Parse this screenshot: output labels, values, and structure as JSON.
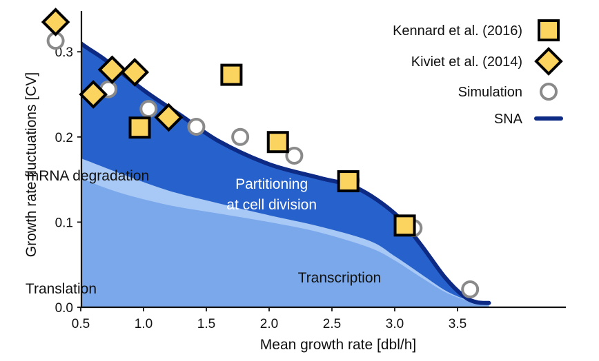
{
  "chart_data": {
    "type": "area",
    "xlabel": "Mean growth rate [dbl/h]",
    "ylabel": "Growth rate fluctuations [CV]",
    "xlim": [
      0,
      3.8
    ],
    "ylim": [
      0,
      0.35
    ],
    "x_ticks": [
      {
        "value": 0.5,
        "label": "0.5"
      },
      {
        "value": 1.0,
        "label": "1.0"
      },
      {
        "value": 1.5,
        "label": "1.5"
      },
      {
        "value": 2.0,
        "label": "2.0"
      },
      {
        "value": 2.5,
        "label": "2.5"
      },
      {
        "value": 3.0,
        "label": "3.0"
      },
      {
        "value": 3.5,
        "label": "3.5"
      }
    ],
    "y_ticks": [
      {
        "value": 0.0,
        "label": "0.0"
      },
      {
        "value": 0.1,
        "label": "0.1"
      },
      {
        "value": 0.2,
        "label": "0.2"
      },
      {
        "value": 0.3,
        "label": "0.3"
      }
    ],
    "areas": [
      {
        "name": "Partitioning at cell division",
        "color": "#2762cc",
        "x": [
          0.02,
          0.1,
          0.2,
          0.3,
          0.5,
          0.7,
          1.0,
          1.3,
          1.6,
          2.0,
          2.4,
          2.7,
          3.0,
          3.2,
          3.4,
          3.55,
          3.65,
          3.75
        ],
        "y": [
          0.35,
          0.35,
          0.345,
          0.335,
          0.31,
          0.29,
          0.255,
          0.225,
          0.195,
          0.168,
          0.152,
          0.14,
          0.11,
          0.075,
          0.035,
          0.013,
          0.006,
          0.005
        ]
      },
      {
        "name": "mRNA degradation",
        "color": "#a8c8f5",
        "x": [
          0.02,
          0.05,
          0.1,
          0.15,
          0.2,
          0.3,
          0.5,
          0.8,
          1.2,
          1.6,
          2.0,
          2.4,
          2.8,
          3.0,
          3.2,
          3.4,
          3.55,
          3.65,
          3.75
        ],
        "y": [
          0.35,
          0.3,
          0.225,
          0.2,
          0.192,
          0.185,
          0.175,
          0.158,
          0.137,
          0.122,
          0.108,
          0.095,
          0.078,
          0.06,
          0.04,
          0.02,
          0.01,
          0.006,
          0.005
        ]
      },
      {
        "name": "Transcription",
        "color": "#7aa8ea",
        "x": [
          0.02,
          0.05,
          0.1,
          0.15,
          0.2,
          0.3,
          0.5,
          0.8,
          1.2,
          1.6,
          2.0,
          2.4,
          2.8,
          3.0,
          3.2,
          3.4,
          3.55,
          3.65,
          3.75
        ],
        "y": [
          0.33,
          0.27,
          0.205,
          0.19,
          0.18,
          0.168,
          0.152,
          0.135,
          0.12,
          0.11,
          0.1,
          0.088,
          0.07,
          0.055,
          0.036,
          0.018,
          0.009,
          0.005,
          0.004
        ]
      },
      {
        "name": "Translation",
        "color": "#b3b3b3",
        "x": [
          0.0,
          0.03,
          0.06,
          0.09,
          0.12,
          0.15,
          0.2,
          0.3
        ],
        "y": [
          0.083,
          0.05,
          0.03,
          0.015,
          0.007,
          0.003,
          0.001,
          0.0
        ]
      }
    ],
    "area_labels": [
      {
        "text": "mRNA degradation",
        "x": 0.07,
        "y": 0.149,
        "style": "dark"
      },
      {
        "text": "Partitioning",
        "x": 2.02,
        "y": 0.139,
        "style": "light",
        "anchor": "middle"
      },
      {
        "text": "at cell division",
        "x": 2.02,
        "y": 0.115,
        "style": "light",
        "anchor": "middle"
      },
      {
        "text": "Transcription",
        "x": 2.56,
        "y": 0.029,
        "style": "dark",
        "anchor": "middle"
      },
      {
        "text": "Translation",
        "x": 0.06,
        "y": 0.016,
        "style": "dark"
      }
    ],
    "sna": {
      "name": "SNA",
      "color": "#0d2a85",
      "x": [
        0.02,
        0.1,
        0.2,
        0.3,
        0.5,
        0.7,
        1.0,
        1.3,
        1.6,
        2.0,
        2.4,
        2.7,
        3.0,
        3.2,
        3.4,
        3.55,
        3.65,
        3.75
      ],
      "y": [
        0.35,
        0.35,
        0.345,
        0.335,
        0.31,
        0.29,
        0.255,
        0.225,
        0.195,
        0.168,
        0.152,
        0.14,
        0.11,
        0.075,
        0.035,
        0.013,
        0.006,
        0.005
      ]
    },
    "series": [
      {
        "name": "Kennard et al. (2016)",
        "marker": "square",
        "color": "#fbd460",
        "x": [
          0.97,
          1.7,
          2.07,
          2.63,
          3.08
        ],
        "y": [
          0.211,
          0.273,
          0.194,
          0.148,
          0.096
        ]
      },
      {
        "name": "Kiviet et al. (2014)",
        "marker": "diamond",
        "color": "#fbd460",
        "x": [
          0.3,
          0.6,
          0.75,
          0.93,
          1.2
        ],
        "y": [
          0.335,
          0.25,
          0.279,
          0.276,
          0.223
        ]
      },
      {
        "name": "Simulation",
        "marker": "circle",
        "color": "#ffffff",
        "x": [
          0.3,
          0.72,
          1.04,
          1.42,
          1.77,
          2.2,
          2.65,
          3.15,
          3.6
        ],
        "y": [
          0.313,
          0.256,
          0.233,
          0.212,
          0.2,
          0.178,
          0.149,
          0.093,
          0.021
        ]
      }
    ],
    "legend": {
      "position": "top-right",
      "entries": [
        {
          "label": "Kennard et al. (2016)",
          "marker": "square"
        },
        {
          "label": "Kiviet et al. (2014)",
          "marker": "diamond"
        },
        {
          "label": "Simulation",
          "marker": "circle"
        },
        {
          "label": "SNA",
          "marker": "line"
        }
      ]
    },
    "grid": false
  }
}
